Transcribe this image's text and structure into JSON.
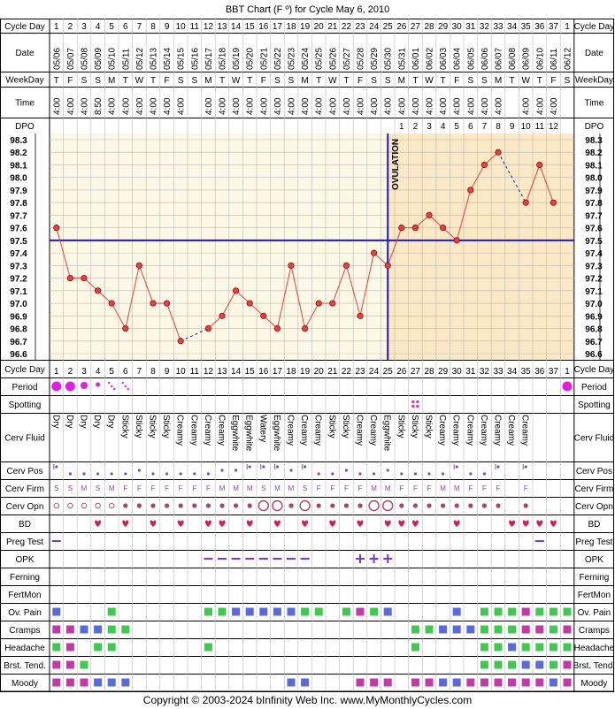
{
  "title": "BBT Chart (F º) for Cycle May 6, 2010",
  "copyright": "Copyright © 2003-2024 bInfinity Web Inc.    www.MyMonthlyCycles.com",
  "ovulation_label": "OVULATION",
  "row_labels": {
    "cycle_day": "Cycle Day",
    "date": "Date",
    "weekday": "WeekDay",
    "time": "Time",
    "dpo": "DPO",
    "period": "Period",
    "spotting": "Spotting",
    "cerv_fluid": "Cerv Fluid",
    "cerv_pos": "Cerv Pos",
    "cerv_firm": "Cerv Firm",
    "cerv_opn": "Cerv Opn",
    "bd": "BD",
    "preg_test": "Preg Test",
    "opk": "OPK",
    "ferning": "Ferning",
    "fertmon": "FertMon",
    "ov_pain": "Ov. Pain",
    "cramps": "Cramps",
    "headache": "Headache",
    "brst_tend": "Brst. Tend.",
    "moody": "Moody"
  },
  "colors": {
    "grid": "#b9b9b9",
    "follicular_bg": "#fdf8e6",
    "luteal_bg": "#fbe8c4",
    "line": "#e84040",
    "point": "#e84040",
    "coverline": "#1a1acc",
    "magenta": "#e020e0",
    "bd_heart": "#d81b5b",
    "opk": "#7a3ad0",
    "blue_box": "#5a6ad8",
    "green_box": "#40c850",
    "magenta_box": "#c23aa8",
    "cerv_purple": "#8a4ca8",
    "cerv_red": "#b0406c",
    "spot_pink": "#e0409a"
  },
  "chart_data": {
    "type": "line",
    "cycle_days": [
      "1",
      "2",
      "3",
      "4",
      "5",
      "6",
      "7",
      "8",
      "9",
      "10",
      "11",
      "12",
      "13",
      "14",
      "15",
      "16",
      "17",
      "18",
      "19",
      "20",
      "21",
      "22",
      "23",
      "24",
      "25",
      "26",
      "27",
      "28",
      "29",
      "30",
      "31",
      "32",
      "33",
      "34",
      "35",
      "36",
      "37",
      "1"
    ],
    "dates": [
      "05/06",
      "05/07",
      "05/08",
      "05/09",
      "05/10",
      "05/11",
      "05/12",
      "05/13",
      "05/14",
      "05/15",
      "05/16",
      "05/17",
      "05/18",
      "05/19",
      "05/20",
      "05/21",
      "05/22",
      "05/23",
      "05/24",
      "05/25",
      "05/26",
      "05/27",
      "05/28",
      "05/29",
      "05/30",
      "05/31",
      "06/01",
      "06/02",
      "06/03",
      "06/04",
      "06/05",
      "06/06",
      "06/07",
      "06/08",
      "06/09",
      "06/10",
      "06/11",
      "06/12"
    ],
    "weekdays": [
      "T",
      "F",
      "S",
      "S",
      "M",
      "T",
      "W",
      "T",
      "F",
      "S",
      "S",
      "M",
      "T",
      "W",
      "T",
      "F",
      "S",
      "S",
      "M",
      "T",
      "W",
      "T",
      "F",
      "S",
      "S",
      "M",
      "T",
      "W",
      "T",
      "F",
      "S",
      "S",
      "M",
      "T",
      "W",
      "T",
      "F",
      "S"
    ],
    "times": [
      "4:00",
      "4:00",
      "4:00",
      "8:50",
      "4:00",
      "4:00",
      "4:00",
      "4:00",
      "4:00",
      "4:00",
      "",
      "4:00",
      "4:00",
      "4:00",
      "4:00",
      "4:00",
      "4:00",
      "4:00",
      "4:00",
      "4:00",
      "4:00",
      "4:00",
      "4:00",
      "4:00",
      "4:00",
      "4:00",
      "4:00",
      "4:00",
      "4:00",
      "4:00",
      "4:00",
      "4:00",
      "4:00",
      "",
      "4:00",
      "4:00",
      "4:00",
      ""
    ],
    "dpo": [
      "",
      "",
      "",
      "",
      "",
      "",
      "",
      "",
      "",
      "",
      "",
      "",
      "",
      "",
      "",
      "",
      "",
      "",
      "",
      "",
      "",
      "",
      "",
      "",
      "",
      "1",
      "2",
      "3",
      "4",
      "5",
      "6",
      "7",
      "8",
      "9",
      "10",
      "11",
      "12",
      ""
    ],
    "temps": [
      97.6,
      97.2,
      97.2,
      97.1,
      97.0,
      96.8,
      97.3,
      97.0,
      97.0,
      96.7,
      null,
      96.8,
      96.9,
      97.1,
      97.0,
      96.9,
      96.8,
      97.3,
      96.8,
      97.0,
      97.0,
      97.3,
      96.9,
      97.4,
      97.3,
      97.6,
      97.6,
      97.7,
      97.6,
      97.5,
      97.9,
      98.1,
      98.2,
      null,
      97.8,
      98.1,
      97.8,
      null
    ],
    "y_ticks": [
      "98.3",
      "98.2",
      "98.1",
      "98.0",
      "97.9",
      "97.8",
      "97.7",
      "97.6",
      "97.5",
      "97.4",
      "97.3",
      "97.2",
      "97.1",
      "97.0",
      "96.9",
      "96.8",
      "96.7",
      "96.6"
    ],
    "ylim": [
      96.6,
      98.3
    ],
    "coverline": 97.5,
    "ovulation_day": 25,
    "grid": true
  },
  "tracking": {
    "period": [
      "big",
      "big",
      "med",
      "small",
      "dots",
      "dots",
      "",
      "",
      "",
      "",
      "",
      "",
      "",
      "",
      "",
      "",
      "",
      "",
      "",
      "",
      "",
      "",
      "",
      "",
      "",
      "",
      "",
      "",
      "",
      "",
      "",
      "",
      "",
      "",
      "",
      "",
      "",
      "big"
    ],
    "spotting_day": 27,
    "cerv_fluid": [
      "Dry",
      "Dry",
      "Dry",
      "Dry",
      "Dry",
      "Sticky",
      "Sticky",
      "Sticky",
      "Sticky",
      "Creamy",
      "Creamy",
      "Creamy",
      "Creamy",
      "Eggwhite",
      "Eggwhite",
      "Watery",
      "Eggwhite",
      "Creamy",
      "Creamy",
      "Creamy",
      "Sticky",
      "Sticky",
      "Creamy",
      "Creamy",
      "Eggwhite",
      "Sticky",
      "Sticky",
      "Sticky",
      "Creamy",
      "Creamy",
      "Creamy",
      "Creamy",
      "Creamy",
      "Creamy",
      "Creamy",
      "",
      "",
      ""
    ],
    "cerv_pos": [
      "hi",
      "lo",
      "lo",
      "lo",
      "lo",
      "lo",
      "mid",
      "lo",
      "lo",
      "lo",
      "lo",
      "lo",
      "mid",
      "mid",
      "hi",
      "hi",
      "hi",
      "mid",
      "hi",
      "lo",
      "lo",
      "mid",
      "lo",
      "lo",
      "mid",
      "lo",
      "lo",
      "lo",
      "lo",
      "hi",
      "lo",
      "lo",
      "hi",
      "",
      "hi",
      "",
      "",
      ""
    ],
    "cerv_firm": [
      "S",
      "S",
      "M",
      "S",
      "M",
      "F",
      "F",
      "F",
      "F",
      "F",
      "F",
      "F",
      "M",
      "M",
      "M",
      "S",
      "M",
      "M",
      "S",
      "F",
      "F",
      "F",
      "F",
      "M",
      "M",
      "F",
      "F",
      "F",
      "M",
      "M",
      "F",
      "F",
      "F",
      "",
      "F",
      "",
      "",
      ""
    ],
    "cerv_opn": [
      "o",
      "o",
      "o",
      "o",
      "o",
      "f",
      "f",
      "f",
      "f",
      "f",
      "f",
      "f",
      "f",
      "f",
      "f",
      "O",
      "O",
      "f",
      "O",
      "f",
      "f",
      "f",
      "f",
      "O",
      "O",
      "f",
      "f",
      "f",
      "f",
      "f",
      "f",
      "f",
      "f",
      "",
      "f",
      "",
      "",
      ""
    ],
    "bd_days": [
      4,
      6,
      8,
      10,
      12,
      13,
      15,
      17,
      19,
      21,
      23,
      25,
      26,
      27,
      30,
      34,
      35,
      36,
      37
    ],
    "preg_test": [
      [
        1,
        "neg"
      ],
      [
        36,
        "neg"
      ]
    ],
    "opk": [
      [
        12,
        "neg"
      ],
      [
        13,
        "neg"
      ],
      [
        14,
        "neg"
      ],
      [
        15,
        "neg"
      ],
      [
        16,
        "neg"
      ],
      [
        17,
        "neg"
      ],
      [
        18,
        "neg"
      ],
      [
        19,
        "neg"
      ],
      [
        23,
        "pos"
      ],
      [
        24,
        "pos"
      ],
      [
        25,
        "pos"
      ]
    ],
    "ov_pain": [
      [
        1,
        "blue"
      ],
      [
        5,
        "green"
      ],
      [
        12,
        "green"
      ],
      [
        13,
        "green"
      ],
      [
        14,
        "blue"
      ],
      [
        15,
        "blue"
      ],
      [
        16,
        "blue"
      ],
      [
        17,
        "blue"
      ],
      [
        18,
        "blue"
      ],
      [
        19,
        "green"
      ],
      [
        20,
        "green"
      ],
      [
        22,
        "green"
      ],
      [
        23,
        "magenta"
      ],
      [
        24,
        "green"
      ],
      [
        25,
        "blue"
      ],
      [
        30,
        "blue"
      ],
      [
        32,
        "green"
      ],
      [
        33,
        "green"
      ],
      [
        34,
        "green"
      ],
      [
        35,
        "magenta"
      ],
      [
        36,
        "green"
      ],
      [
        37,
        "green"
      ],
      [
        38,
        "green"
      ]
    ],
    "cramps": [
      [
        1,
        "magenta"
      ],
      [
        2,
        "magenta"
      ],
      [
        3,
        "blue"
      ],
      [
        4,
        "blue"
      ],
      [
        5,
        "green"
      ],
      [
        6,
        "green"
      ],
      [
        27,
        "green"
      ],
      [
        28,
        "green"
      ],
      [
        29,
        "blue"
      ],
      [
        30,
        "blue"
      ],
      [
        31,
        "blue"
      ],
      [
        32,
        "green"
      ],
      [
        33,
        "green"
      ],
      [
        34,
        "green"
      ],
      [
        35,
        "magenta"
      ],
      [
        36,
        "magenta"
      ],
      [
        37,
        "green"
      ],
      [
        38,
        "magenta"
      ]
    ],
    "headache": [
      [
        1,
        "green"
      ],
      [
        2,
        "magenta"
      ],
      [
        4,
        "green"
      ],
      [
        5,
        "green"
      ],
      [
        12,
        "green"
      ],
      [
        27,
        "green"
      ],
      [
        32,
        "green"
      ],
      [
        33,
        "green"
      ],
      [
        34,
        "blue"
      ],
      [
        35,
        "green"
      ],
      [
        36,
        "green"
      ],
      [
        37,
        "green"
      ],
      [
        38,
        "green"
      ]
    ],
    "brst_tend": [
      [
        1,
        "magenta"
      ],
      [
        2,
        "magenta"
      ],
      [
        3,
        "green"
      ],
      [
        32,
        "green"
      ],
      [
        33,
        "green"
      ],
      [
        34,
        "green"
      ],
      [
        35,
        "blue"
      ],
      [
        36,
        "blue"
      ],
      [
        37,
        "green"
      ],
      [
        38,
        "magenta"
      ]
    ],
    "moody": [
      [
        1,
        "magenta"
      ],
      [
        2,
        "magenta"
      ],
      [
        3,
        "magenta"
      ],
      [
        4,
        "blue"
      ],
      [
        5,
        "blue"
      ],
      [
        6,
        "blue"
      ],
      [
        18,
        "blue"
      ],
      [
        19,
        "blue"
      ],
      [
        23,
        "magenta"
      ],
      [
        24,
        "magenta"
      ],
      [
        25,
        "magenta"
      ],
      [
        27,
        "magenta"
      ],
      [
        28,
        "magenta"
      ],
      [
        29,
        "blue"
      ],
      [
        30,
        "blue"
      ],
      [
        31,
        "magenta"
      ],
      [
        32,
        "magenta"
      ],
      [
        33,
        "magenta"
      ],
      [
        34,
        "magenta"
      ],
      [
        35,
        "magenta"
      ],
      [
        36,
        "magenta"
      ],
      [
        37,
        "blue"
      ],
      [
        38,
        "magenta"
      ]
    ]
  }
}
